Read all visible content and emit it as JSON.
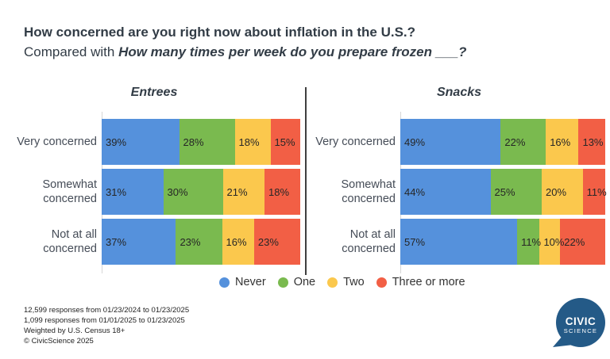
{
  "title": {
    "line1": "How concerned are you right now about inflation in the U.S.?",
    "line2_prefix": "Compared with ",
    "line2_emphasis": "How many times per week do you prepare frozen ___?"
  },
  "colors": {
    "never": "#5591DC",
    "one": "#7ABA4F",
    "two": "#FBC84D",
    "three_or_more": "#F25F45",
    "title_text": "#323C46",
    "logo_navy": "#245A87"
  },
  "legend": {
    "position": "bottom",
    "items": [
      {
        "label": "Never",
        "color": "#5591DC"
      },
      {
        "label": "One",
        "color": "#7ABA4F"
      },
      {
        "label": "Two",
        "color": "#FBC84D"
      },
      {
        "label": "Three or more",
        "color": "#F25F45"
      }
    ]
  },
  "chart_data": [
    {
      "type": "bar",
      "orientation": "horizontal-stacked",
      "title": "Entrees",
      "value_suffix": "%",
      "xlim": [
        0,
        100
      ],
      "grid": false,
      "categories": [
        "Very concerned",
        "Somewhat concerned",
        "Not at all concerned"
      ],
      "series": [
        {
          "name": "Never",
          "color": "#5591DC",
          "values": [
            39,
            31,
            37
          ]
        },
        {
          "name": "One",
          "color": "#7ABA4F",
          "values": [
            28,
            30,
            23
          ]
        },
        {
          "name": "Two",
          "color": "#FBC84D",
          "values": [
            18,
            21,
            16
          ]
        },
        {
          "name": "Three or more",
          "color": "#F25F45",
          "values": [
            15,
            18,
            23
          ]
        }
      ]
    },
    {
      "type": "bar",
      "orientation": "horizontal-stacked",
      "title": "Snacks",
      "value_suffix": "%",
      "xlim": [
        0,
        100
      ],
      "grid": false,
      "categories": [
        "Very concerned",
        "Somewhat concerned",
        "Not at all concerned"
      ],
      "series": [
        {
          "name": "Never",
          "color": "#5591DC",
          "values": [
            49,
            44,
            57
          ]
        },
        {
          "name": "One",
          "color": "#7ABA4F",
          "values": [
            22,
            25,
            11
          ]
        },
        {
          "name": "Two",
          "color": "#FBC84D",
          "values": [
            16,
            20,
            10
          ]
        },
        {
          "name": "Three or more",
          "color": "#F25F45",
          "values": [
            13,
            11,
            22
          ]
        }
      ]
    }
  ],
  "footnotes": [
    "12,599 responses from 01/23/2024 to 01/23/2025",
    "1,099 responses from 01/01/2025 to 01/23/2025",
    "Weighted by U.S. Census 18+",
    "© CivicScience 2025"
  ],
  "logo": {
    "line1": "CIVIC",
    "line2": "SCIENCE"
  }
}
